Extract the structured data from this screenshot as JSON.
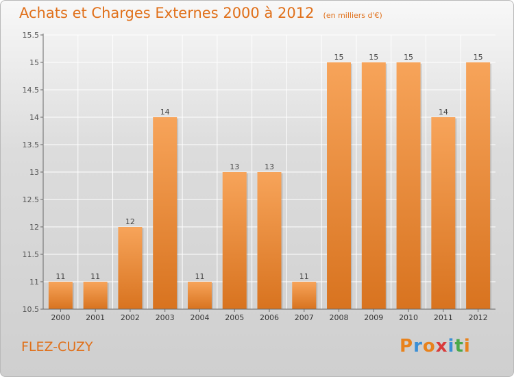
{
  "colors": {
    "accent": "#e0701a",
    "bar_top": "#f7a45a",
    "bar_bottom": "#d8731f"
  },
  "chart_data": {
    "type": "bar",
    "title": "Achats et Charges Externes 2000 à 2012",
    "subtitle": "(en milliers d'€)",
    "categories": [
      "2000",
      "2001",
      "2002",
      "2003",
      "2004",
      "2005",
      "2006",
      "2007",
      "2008",
      "2009",
      "2010",
      "2011",
      "2012"
    ],
    "values": [
      11,
      11,
      12,
      14,
      11,
      13,
      13,
      11,
      15,
      15,
      15,
      14,
      15
    ],
    "ylim": [
      10.5,
      15.5
    ],
    "yticks": [
      "10.5",
      "11",
      "11.5",
      "12",
      "12.5",
      "13",
      "13.5",
      "14",
      "14.5",
      "15",
      "15.5"
    ],
    "grid": true
  },
  "footer": {
    "place": "FLEZ-CUZY",
    "logo": [
      "P",
      "r",
      "o",
      "x",
      "i",
      "t",
      "i"
    ]
  }
}
